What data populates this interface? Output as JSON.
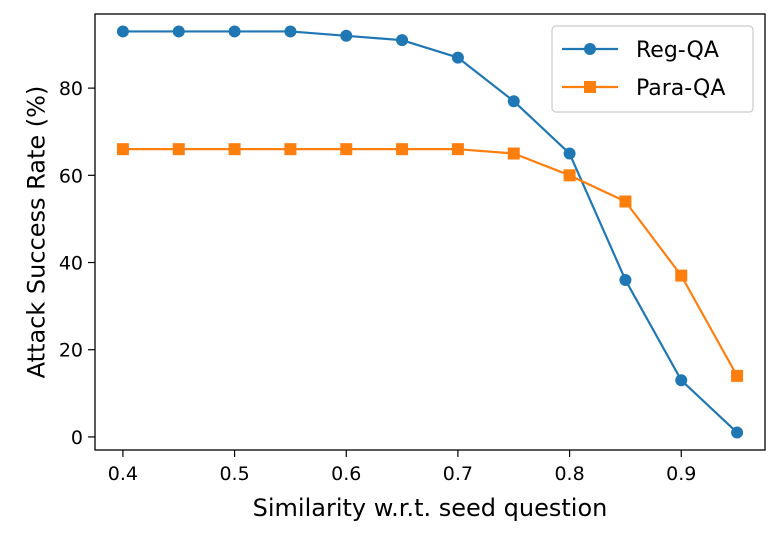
{
  "chart_data": {
    "type": "line",
    "xlabel": "Similarity w.r.t. seed question",
    "ylabel": "Attack Success Rate (%)",
    "x": [
      0.4,
      0.45,
      0.5,
      0.55,
      0.6,
      0.65,
      0.7,
      0.75,
      0.8,
      0.85,
      0.9,
      0.95
    ],
    "xlim": [
      0.375,
      0.975
    ],
    "ylim": [
      -3,
      97
    ],
    "xticks": [
      "0.4",
      "0.5",
      "0.6",
      "0.7",
      "0.8",
      "0.9"
    ],
    "xtick_values": [
      0.4,
      0.5,
      0.6,
      0.7,
      0.8,
      0.9
    ],
    "yticks": [
      "0",
      "20",
      "40",
      "60",
      "80"
    ],
    "ytick_values": [
      0,
      20,
      40,
      60,
      80
    ],
    "grid": false,
    "legend_position": "top-right",
    "series": [
      {
        "name": "Reg-QA",
        "color": "#1f77b4",
        "marker": "circle",
        "values": [
          93,
          93,
          93,
          93,
          92,
          91,
          87,
          77,
          65,
          36,
          13,
          1
        ]
      },
      {
        "name": "Para-QA",
        "color": "#ff7f0e",
        "marker": "square",
        "values": [
          66,
          66,
          66,
          66,
          66,
          66,
          66,
          65,
          60,
          54,
          37,
          14
        ]
      }
    ]
  }
}
